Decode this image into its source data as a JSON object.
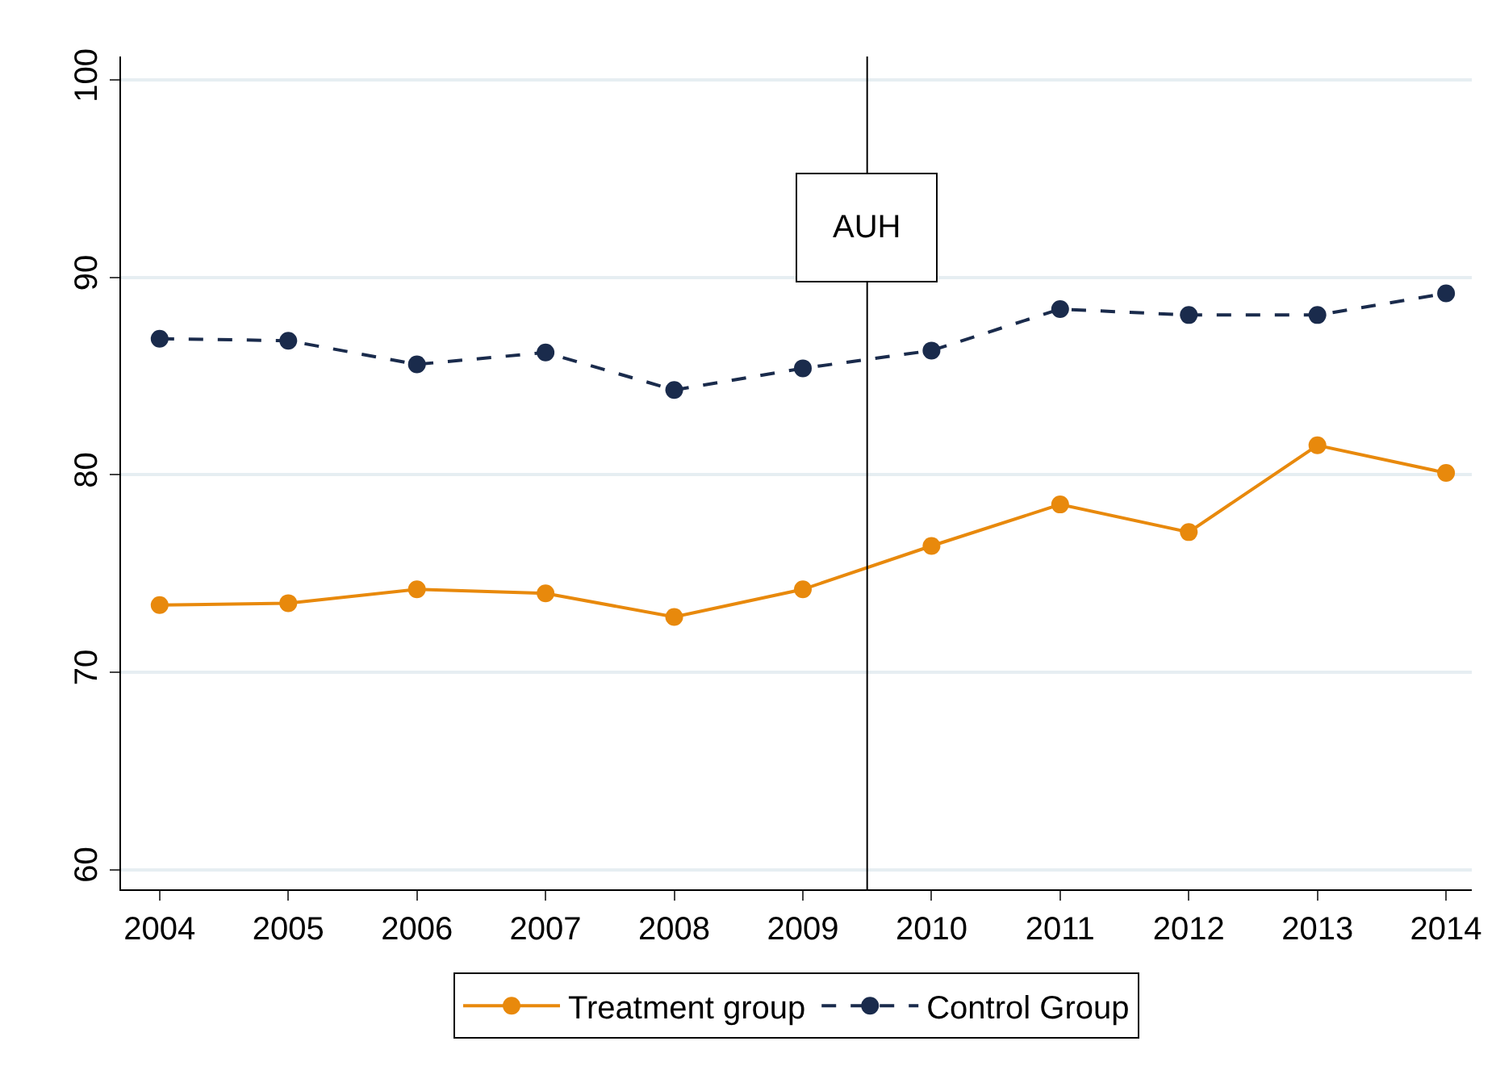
{
  "chart_data": {
    "type": "line",
    "x": [
      2004,
      2005,
      2006,
      2007,
      2008,
      2009,
      2010,
      2011,
      2012,
      2013,
      2014
    ],
    "series": [
      {
        "name": "Treatment group",
        "color": "#e8890c",
        "line_style": "solid",
        "values": [
          73.4,
          73.5,
          74.2,
          74.0,
          72.8,
          74.2,
          76.4,
          78.5,
          77.1,
          81.5,
          80.1
        ]
      },
      {
        "name": "Control Group",
        "color": "#1a2b4c",
        "line_style": "dashed",
        "values": [
          86.9,
          86.8,
          85.6,
          86.2,
          84.3,
          85.4,
          86.3,
          88.4,
          88.1,
          88.1,
          89.2
        ]
      }
    ],
    "xlim": [
      2003.7,
      2014.2
    ],
    "xticks": [
      2004,
      2005,
      2006,
      2007,
      2008,
      2009,
      2010,
      2011,
      2012,
      2013,
      2014
    ],
    "ylim": [
      59,
      101.2
    ],
    "yticks": [
      60,
      70,
      80,
      90,
      100
    ],
    "ref_lines": [
      {
        "axis": "x",
        "value": 2009.5,
        "label": "AUH",
        "color": "#000000"
      }
    ],
    "grid": "y",
    "legend": "bottom",
    "marker": "circle"
  }
}
